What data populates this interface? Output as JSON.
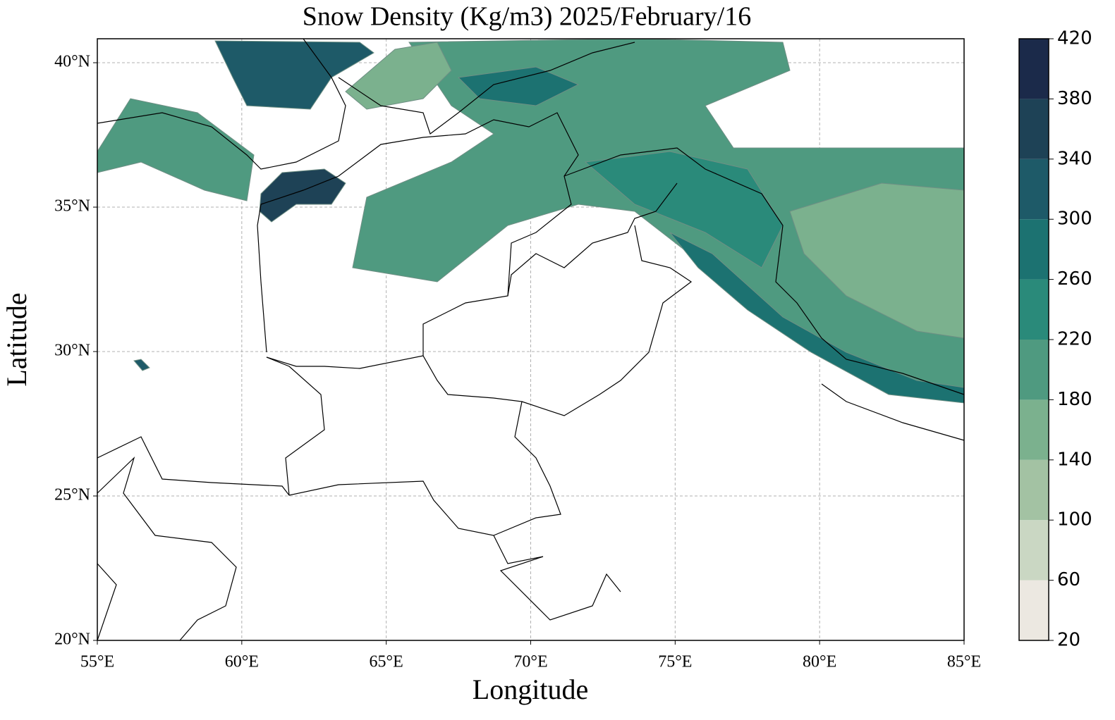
{
  "chart_data": {
    "type": "map",
    "title": "Snow Density (Kg/m3) 2025/February/16",
    "x_label": "Longitude",
    "y_label": "Latitude",
    "xlim": [
      55,
      85
    ],
    "ylim": [
      20,
      40.83
    ],
    "xticks": [
      {
        "value": 55,
        "label": "55°E"
      },
      {
        "value": 60,
        "label": "60°E"
      },
      {
        "value": 65,
        "label": "65°E"
      },
      {
        "value": 70,
        "label": "70°E"
      },
      {
        "value": 75,
        "label": "75°E"
      },
      {
        "value": 80,
        "label": "80°E"
      },
      {
        "value": 85,
        "label": "85°E"
      }
    ],
    "yticks": [
      {
        "value": 20,
        "label": "20°N"
      },
      {
        "value": 25,
        "label": "25°N"
      },
      {
        "value": 30,
        "label": "30°N"
      },
      {
        "value": 35,
        "label": "35°N"
      },
      {
        "value": 40,
        "label": "40°N"
      }
    ],
    "grid": true,
    "colorbar": {
      "levels": [
        20,
        60,
        100,
        140,
        180,
        220,
        260,
        300,
        340,
        380,
        420
      ],
      "colors": [
        "#ece8e1",
        "#cad7c3",
        "#a3c2a3",
        "#7bb18e",
        "#4f9a80",
        "#2a8a7a",
        "#1c7271",
        "#1e5a68",
        "#1e4256",
        "#1b2a4a"
      ]
    }
  }
}
